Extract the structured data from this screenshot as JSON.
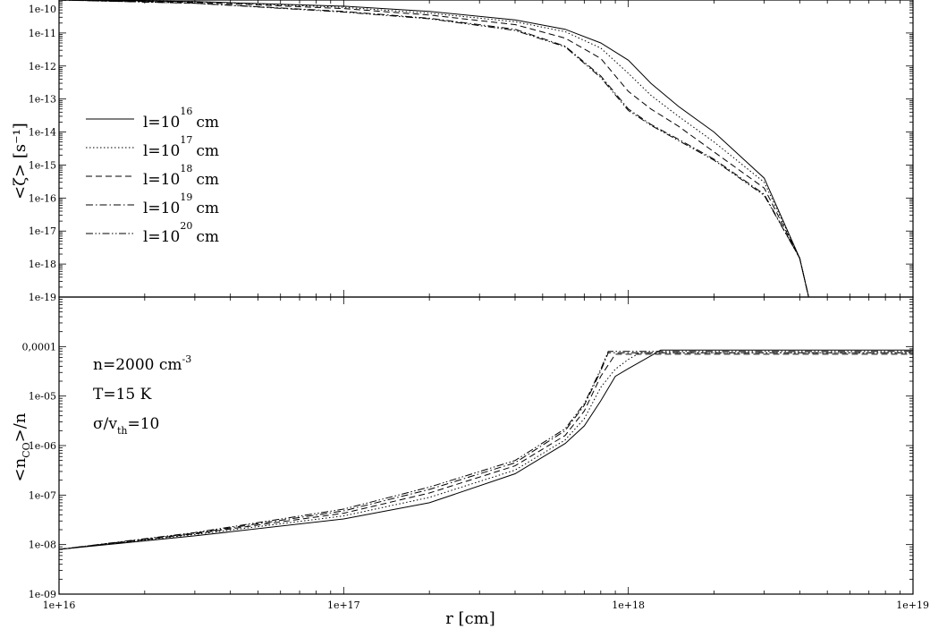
{
  "chart_data": [
    {
      "type": "line",
      "panel": "top",
      "ylabel": "<ζ> [s⁻¹]",
      "xscale": "log",
      "yscale": "log",
      "xlim": [
        1e+16,
        1e+19
      ],
      "ylim": [
        1e-19,
        1e-10
      ],
      "yticks": [
        "1e-10",
        "1e-11",
        "1e-12",
        "1e-13",
        "1e-14",
        "1e-15",
        "1e-16",
        "1e-17",
        "1e-18",
        "1e-19"
      ],
      "legend_position": "left",
      "series": [
        {
          "name": "l=10",
          "exp": "16",
          "unit": "cm",
          "dash": "solid",
          "x": [
            1e+16,
            3e+16,
            1e+17,
            2e+17,
            4e+17,
            6e+17,
            8e+17,
            1e+18,
            1.2e+18,
            1.5e+18,
            2e+18,
            3e+18,
            4e+18,
            4.3e+18
          ],
          "y": [
            1e-10,
            9e-11,
            6.5e-11,
            4.5e-11,
            2.5e-11,
            1.3e-11,
            5e-12,
            1.5e-12,
            3e-13,
            6e-14,
            1e-14,
            4e-16,
            1.5e-18,
            1e-19
          ]
        },
        {
          "name": "l=10",
          "exp": "17",
          "unit": "cm",
          "dash": "dotted",
          "x": [
            1e+16,
            3e+16,
            1e+17,
            2e+17,
            4e+17,
            6e+17,
            8e+17,
            1e+18,
            1.2e+18,
            1.5e+18,
            2e+18,
            3e+18,
            4e+18,
            4.3e+18
          ],
          "y": [
            1e-10,
            9e-11,
            6e-11,
            4e-11,
            2.2e-11,
            1.1e-11,
            3.5e-12,
            6e-13,
            1.3e-13,
            3e-14,
            5e-15,
            3e-16,
            1.5e-18,
            1e-19
          ]
        },
        {
          "name": "l=10",
          "exp": "18",
          "unit": "cm",
          "dash": "dashed",
          "x": [
            1e+16,
            3e+16,
            1e+17,
            2e+17,
            4e+17,
            6e+17,
            8e+17,
            1e+18,
            1.2e+18,
            1.5e+18,
            2e+18,
            3e+18,
            4e+18,
            4.3e+18
          ],
          "y": [
            1e-10,
            8.5e-11,
            5.5e-11,
            3.5e-11,
            1.8e-11,
            7e-12,
            1.7e-12,
            1.7e-13,
            5e-14,
            1.5e-14,
            2.5e-15,
            2e-16,
            1.5e-18,
            1e-19
          ]
        },
        {
          "name": "l=10",
          "exp": "19",
          "unit": "cm",
          "dash": "dashdot",
          "x": [
            1e+16,
            3e+16,
            1e+17,
            2e+17,
            4e+17,
            6e+17,
            8e+17,
            1e+18,
            1.2e+18,
            1.5e+18,
            2e+18,
            3e+18,
            4e+18,
            4.3e+18
          ],
          "y": [
            1e-10,
            8e-11,
            4.5e-11,
            2.8e-11,
            1.3e-11,
            4e-12,
            5e-13,
            5e-14,
            1.7e-14,
            6e-15,
            1.5e-15,
            1.3e-16,
            1.5e-18,
            1e-19
          ]
        },
        {
          "name": "l=10",
          "exp": "20",
          "unit": "cm",
          "dash": "dashdotdot",
          "x": [
            1e+16,
            3e+16,
            1e+17,
            2e+17,
            4e+17,
            6e+17,
            8e+17,
            1e+18,
            1.2e+18,
            1.5e+18,
            2e+18,
            3e+18,
            4e+18,
            4.3e+18
          ],
          "y": [
            1e-10,
            8e-11,
            4.3e-11,
            2.7e-11,
            1.2e-11,
            3.8e-12,
            4.5e-13,
            4.5e-14,
            1.6e-14,
            5.5e-15,
            1.4e-15,
            1.2e-16,
            1.5e-18,
            1e-19
          ]
        }
      ]
    },
    {
      "type": "line",
      "panel": "bottom",
      "ylabel": "<n",
      "ylabel_sub": "CO",
      "ylabel_tail": ">/n",
      "xlabel": "r [cm]",
      "xscale": "log",
      "yscale": "log",
      "xlim": [
        1e+16,
        1e+19
      ],
      "ylim": [
        1e-09,
        0.001
      ],
      "yticks": [
        "1e-09",
        "1e-08",
        "1e-07",
        "1e-06",
        "1e-05",
        "0,0001"
      ],
      "xticks": [
        "1e+16",
        "1e+17",
        "1e+18",
        "1e+19"
      ],
      "annotations": [
        {
          "text": "n=2000 cm",
          "sup": "-3"
        },
        {
          "text": "T=15 K"
        },
        {
          "text": "σ/v",
          "sub": "th",
          "tail": "=10"
        }
      ],
      "series": [
        {
          "dash": "solid",
          "x": [
            1e+16,
            3e+16,
            1e+17,
            2e+17,
            4e+17,
            6e+17,
            7e+17,
            8e+17,
            9e+17,
            1e+18,
            1.2e+18,
            1.3e+18,
            1e+19
          ],
          "y": [
            8e-09,
            1.5e-08,
            3.3e-08,
            7e-08,
            2.7e-07,
            1.1e-06,
            2.5e-06,
            8e-06,
            2.5e-05,
            3.6e-05,
            6.5e-05,
            8.5e-05,
            8.5e-05
          ]
        },
        {
          "dash": "dotted",
          "x": [
            1e+16,
            3e+16,
            1e+17,
            2e+17,
            4e+17,
            6e+17,
            7e+17,
            8e+17,
            9e+17,
            1e+18,
            1.1e+18,
            1e+19
          ],
          "y": [
            8e-09,
            1.6e-08,
            3.8e-08,
            9e-08,
            3.2e-07,
            1.3e-06,
            3.5e-06,
            1.5e-05,
            3.5e-05,
            5.5e-05,
            7.5e-05,
            7.5e-05
          ]
        },
        {
          "dash": "dashed",
          "x": [
            1e+16,
            3e+16,
            1e+17,
            2e+17,
            4e+17,
            6e+17,
            7e+17,
            8e+17,
            9e+17,
            1e+19
          ],
          "y": [
            8e-09,
            1.65e-08,
            4.3e-08,
            1.1e-07,
            3.9e-07,
            1.6e-06,
            5e-06,
            2.5e-05,
            7e-05,
            7e-05
          ]
        },
        {
          "dash": "dashdot",
          "x": [
            1e+16,
            3e+16,
            1e+17,
            2e+17,
            4e+17,
            6e+17,
            7e+17,
            8e+17,
            8.5e+17,
            1e+19
          ],
          "y": [
            8e-09,
            1.7e-08,
            4.8e-08,
            1.3e-07,
            4.5e-07,
            2e-06,
            6.5e-06,
            3.2e-05,
            7.5e-05,
            7.5e-05
          ]
        },
        {
          "dash": "dashdotdot",
          "x": [
            1e+16,
            3e+16,
            1e+17,
            2e+17,
            4e+17,
            6e+17,
            7e+17,
            8e+17,
            8.5e+17,
            1e+19
          ],
          "y": [
            8e-09,
            1.75e-08,
            5.2e-08,
            1.45e-07,
            5e-07,
            2.2e-06,
            7e-06,
            3.5e-05,
            8e-05,
            8e-05
          ]
        }
      ]
    }
  ]
}
